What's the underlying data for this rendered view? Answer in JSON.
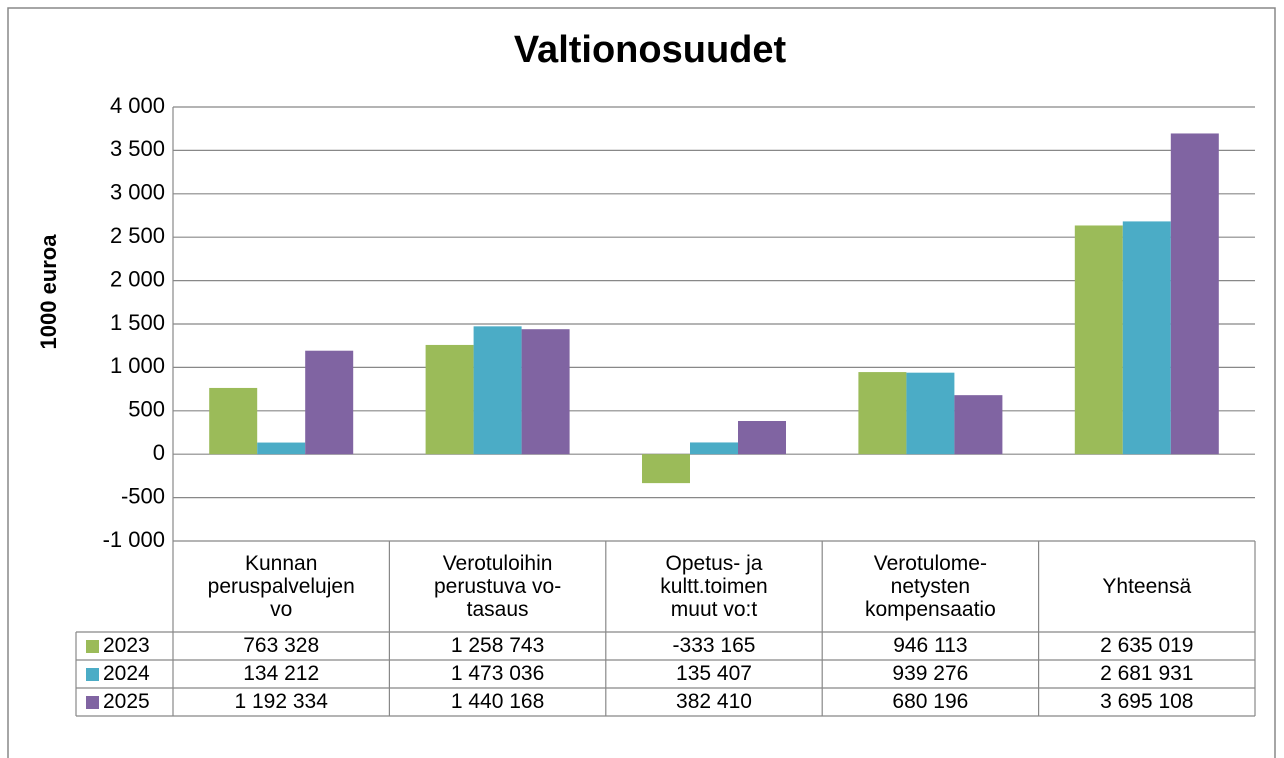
{
  "chart_data": {
    "type": "bar",
    "title": "Valtionosuudet",
    "y_label": "1000 euroa",
    "categories": [
      "Kunnan\nperuspalvelujen\nvo",
      "Verotuloihin\nperustuva vo-\ntasaus",
      "Opetus- ja\nkultt.toimen\nmuut vo:t",
      "Verotulome-\nnetysten\nkompensaatio",
      "Yhteensä"
    ],
    "series": [
      {
        "name": "2023",
        "color": "#9bbb59",
        "values": [
          763.328,
          1258.743,
          -333.165,
          946.113,
          2635.019
        ],
        "value_labels": [
          "763 328",
          "1 258 743",
          "-333 165",
          "946 113",
          "2 635 019"
        ]
      },
      {
        "name": "2024",
        "color": "#4bacc6",
        "values": [
          134.212,
          1473.036,
          135.407,
          939.276,
          2681.931
        ],
        "value_labels": [
          "134 212",
          "1 473 036",
          "135 407",
          "939 276",
          "2 681 931"
        ]
      },
      {
        "name": "2025",
        "color": "#8064a2",
        "values": [
          1192.334,
          1440.168,
          382.41,
          680.196,
          3695.108
        ],
        "value_labels": [
          "1 192 334",
          "1 440 168",
          "382 410",
          "680 196",
          "3 695 108"
        ]
      }
    ],
    "ylim": [
      -1000,
      4000
    ],
    "yticks": [
      {
        "value": -1000,
        "label": "-1 000"
      },
      -500,
      0,
      500,
      {
        "value": 1000,
        "label": "1 000"
      },
      {
        "value": 1500,
        "label": "1 500"
      },
      {
        "value": 2000,
        "label": "2 000"
      },
      {
        "value": 2500,
        "label": "2 500"
      },
      {
        "value": 3000,
        "label": "3 000"
      },
      {
        "value": 3500,
        "label": "3 500"
      },
      {
        "value": 4000,
        "label": "4 000"
      }
    ],
    "grid": true
  }
}
